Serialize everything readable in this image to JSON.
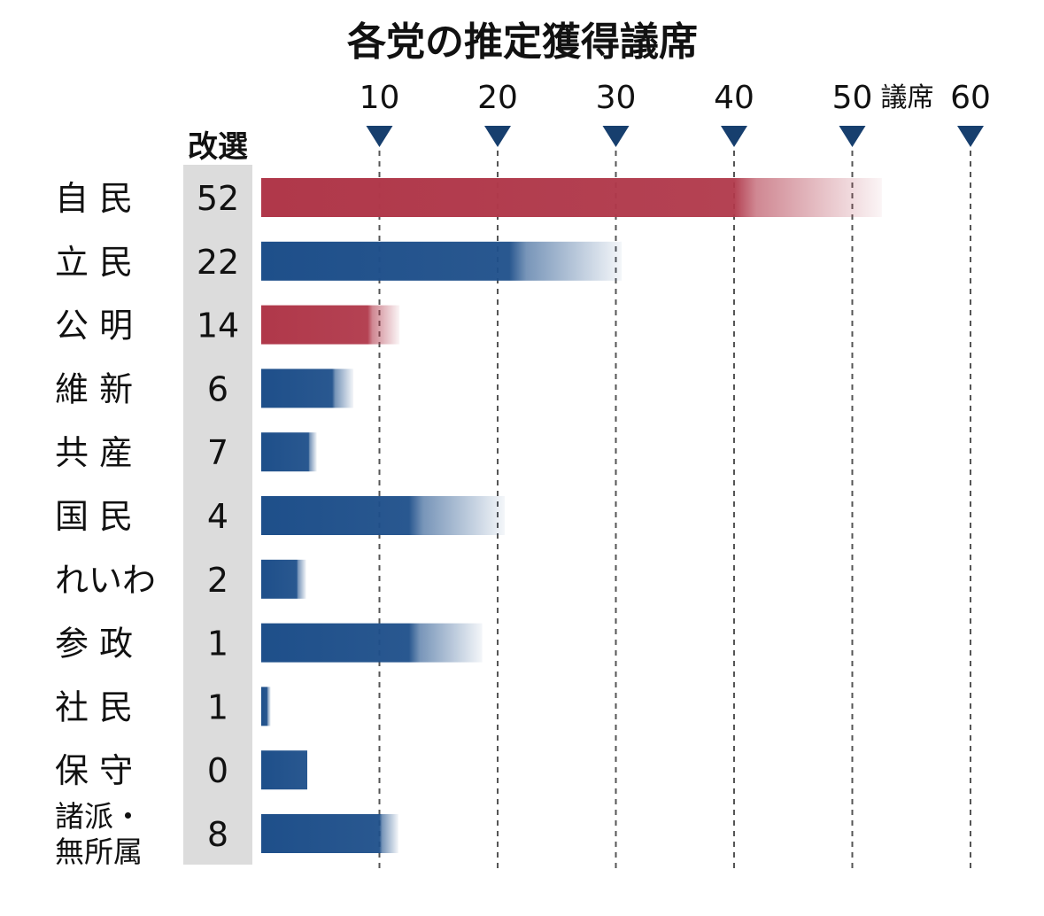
{
  "chart_data": {
    "type": "bar",
    "title": "各党の推定獲得議席",
    "unit_label": "議席",
    "reelection_header": "改選",
    "categories": [
      "自 民",
      "立 民",
      "公 明",
      "維 新",
      "共 産",
      "国 民",
      "れいわ",
      "参 政",
      "社 民",
      "保 守",
      "諸派・無所属"
    ],
    "category_lines": [
      [
        "自 民"
      ],
      [
        "立 民"
      ],
      [
        "公 明"
      ],
      [
        "維 新"
      ],
      [
        "共 産"
      ],
      [
        "国 民"
      ],
      [
        "れいわ"
      ],
      [
        "参 政"
      ],
      [
        "社 民"
      ],
      [
        "保 守"
      ],
      [
        "諸派・",
        "無所属"
      ]
    ],
    "reelection_values": [
      "52",
      "22",
      "14",
      "6",
      "7",
      "4",
      "2",
      "1",
      "1",
      "0",
      "8"
    ],
    "series": [
      {
        "values": [
          40,
          21,
          9,
          6,
          4,
          12.5,
          3,
          12.5,
          0.5,
          4,
          10
        ]
      },
      {
        "values": [
          52.5,
          30.5,
          11.7,
          7.8,
          4.7,
          20.6,
          3.8,
          18.7,
          0.8,
          3.9,
          11.6
        ]
      }
    ],
    "bar_colors": [
      "#b0384a",
      "#1e4f8a",
      "#b0384a",
      "#1e4f8a",
      "#1e4f8a",
      "#1e4f8a",
      "#1e4f8a",
      "#1e4f8a",
      "#1e4f8a",
      "#1e4f8a",
      "#1e4f8a"
    ],
    "xticks": [
      "10",
      "20",
      "30",
      "40",
      "50",
      "60"
    ],
    "xtick_values": [
      10,
      20,
      30,
      40,
      50,
      60
    ],
    "xlim": [
      0,
      60
    ],
    "grid": "dashed vertical",
    "marker_color": "#173f6e"
  }
}
